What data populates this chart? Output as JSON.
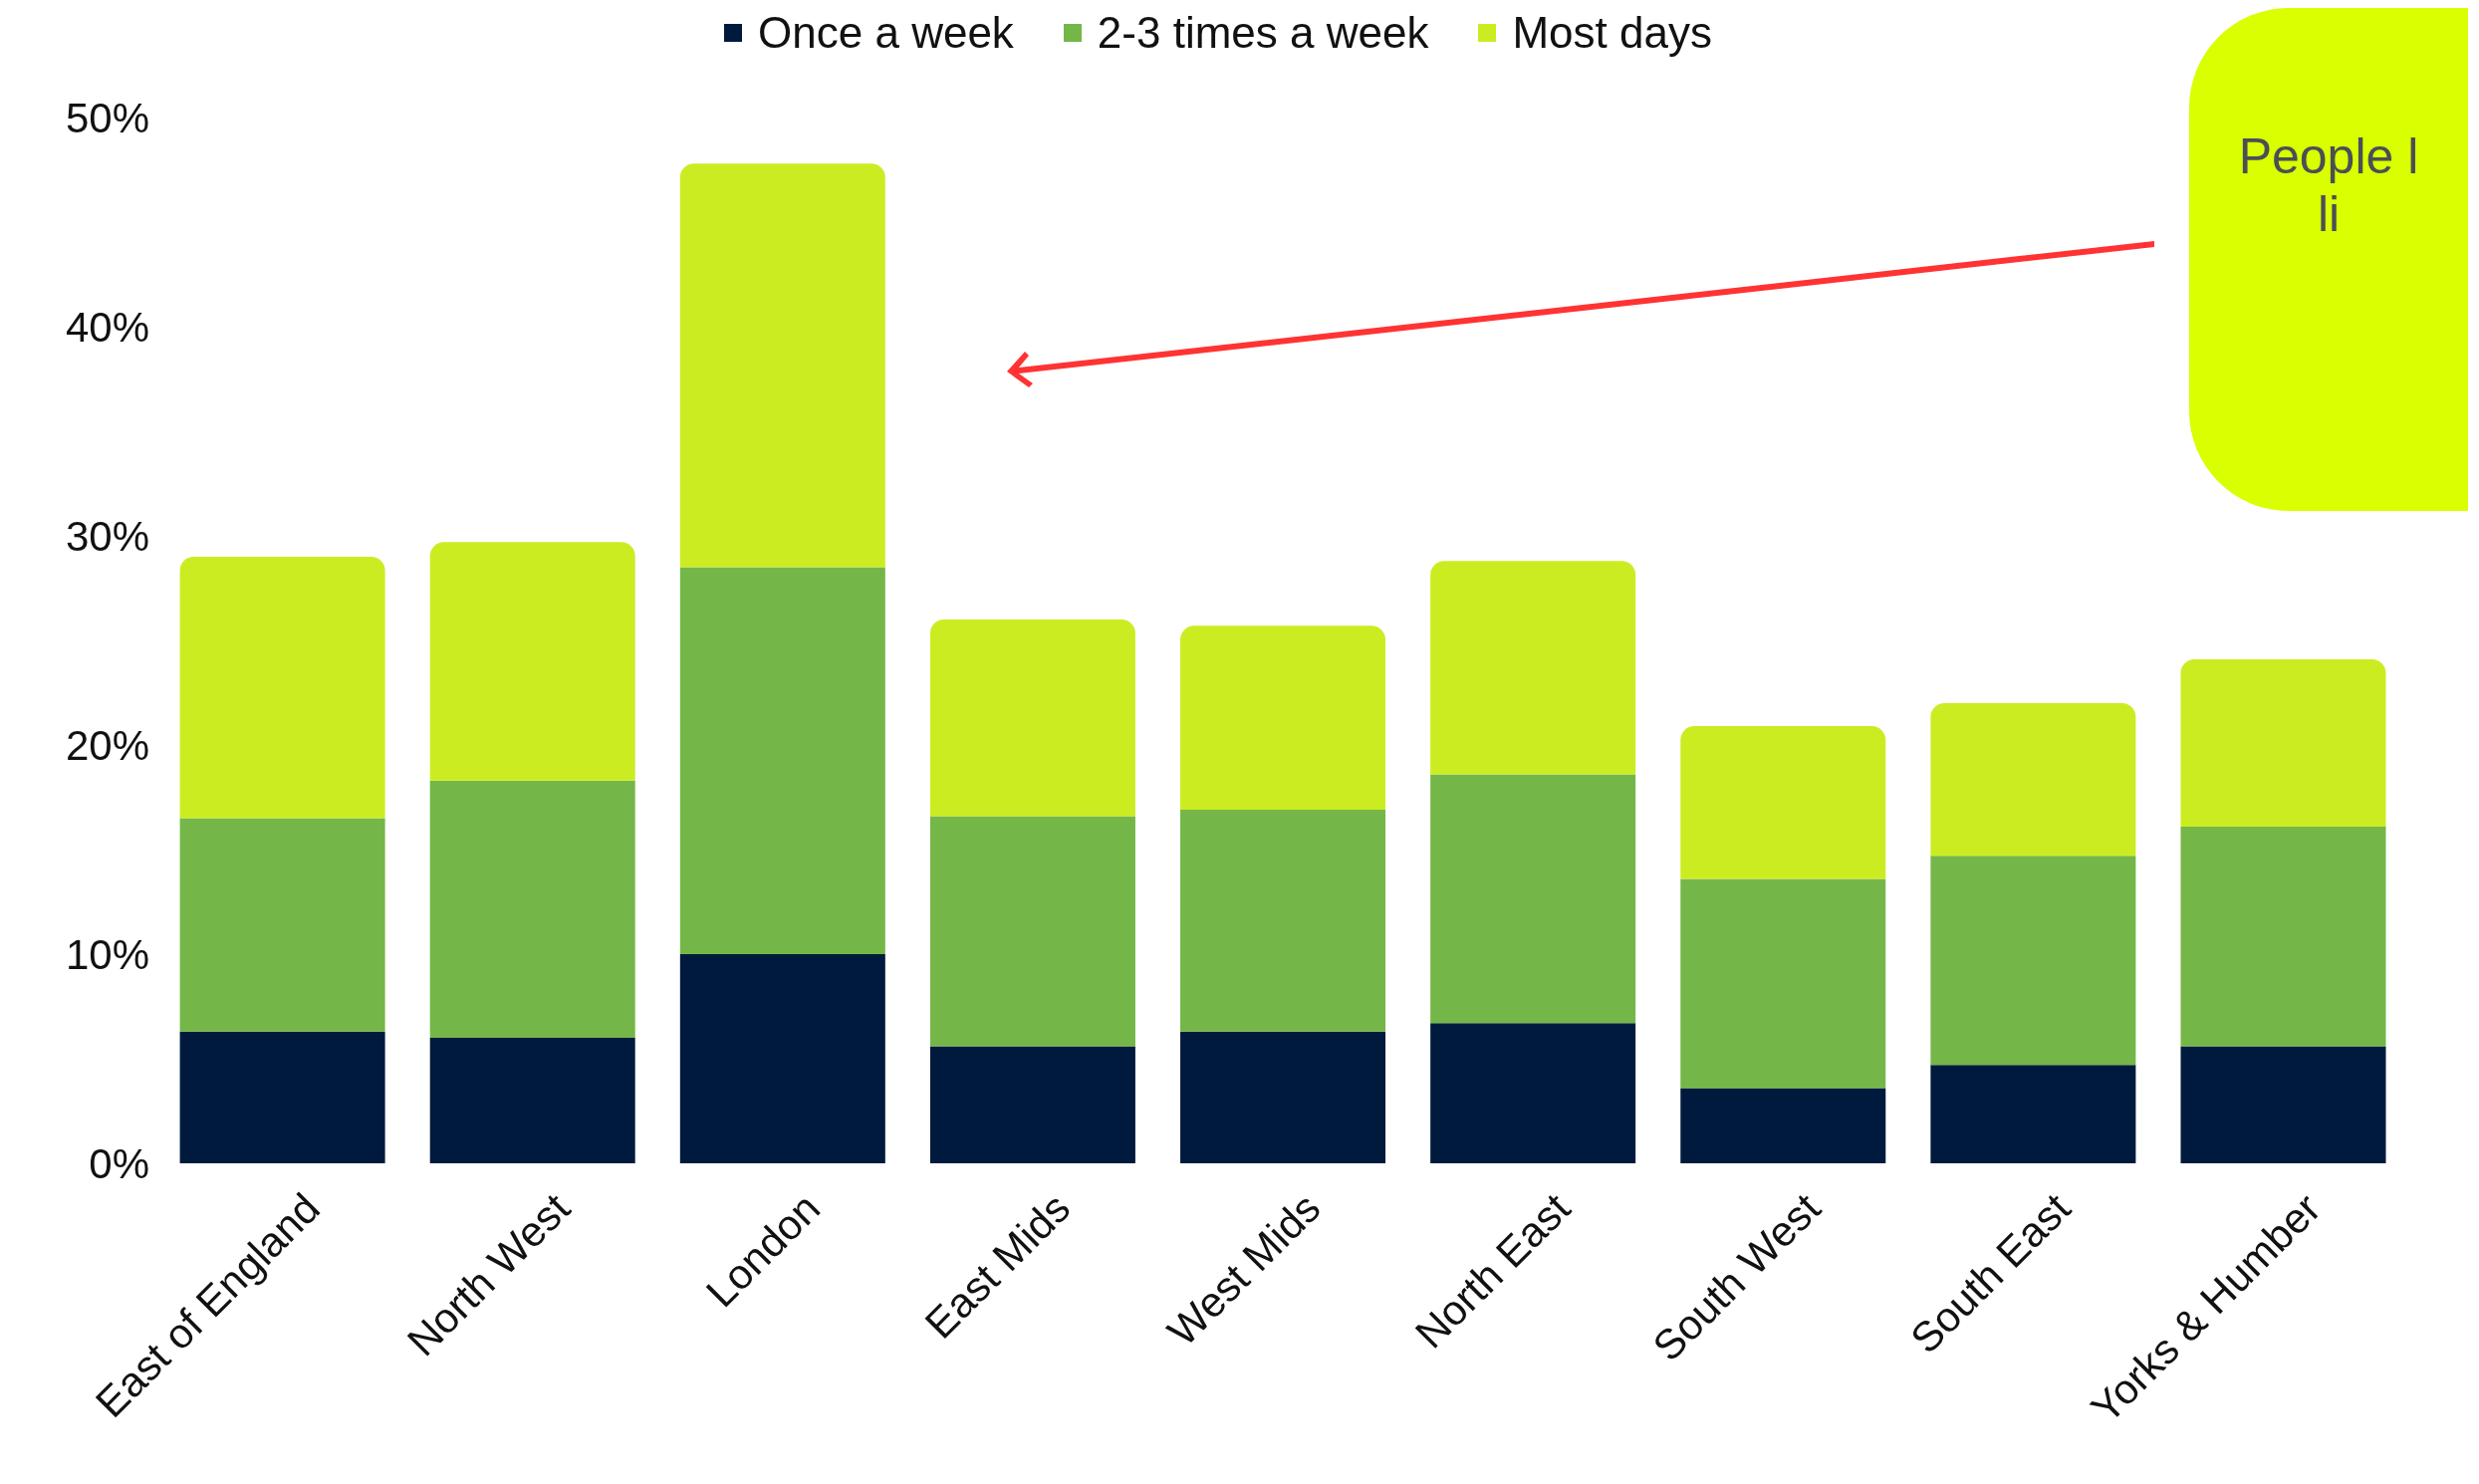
{
  "chart_data": {
    "type": "bar",
    "stacked": true,
    "categories": [
      "East of England",
      "North West",
      "London",
      "East Mids",
      "West Mids",
      "North East",
      "South West",
      "South East",
      "Yorks & Humber"
    ],
    "series": [
      {
        "name": "Once a week",
        "color": "#001a3d",
        "values": [
          6.3,
          6.0,
          10.0,
          5.6,
          6.3,
          6.7,
          3.6,
          4.7,
          5.6
        ]
      },
      {
        "name": "2-3 times a week",
        "color": "#74b748",
        "values": [
          10.2,
          12.3,
          18.5,
          11.0,
          10.6,
          11.9,
          10.0,
          10.0,
          10.5
        ]
      },
      {
        "name": "Most days",
        "color": "#ccec22",
        "values": [
          12.5,
          11.4,
          19.3,
          9.4,
          8.8,
          10.2,
          7.3,
          7.3,
          8.0
        ]
      }
    ],
    "ylim": [
      0,
      50
    ],
    "yticks": [
      {
        "value": 0,
        "label": "0%"
      },
      {
        "value": 10,
        "label": "10%"
      },
      {
        "value": 20,
        "label": "20%"
      },
      {
        "value": 30,
        "label": "30%"
      },
      {
        "value": 40,
        "label": "40%"
      },
      {
        "value": 50,
        "label": "50%"
      }
    ],
    "grid": false,
    "legend": "top",
    "annotations": [
      "People l",
      "li"
    ]
  }
}
